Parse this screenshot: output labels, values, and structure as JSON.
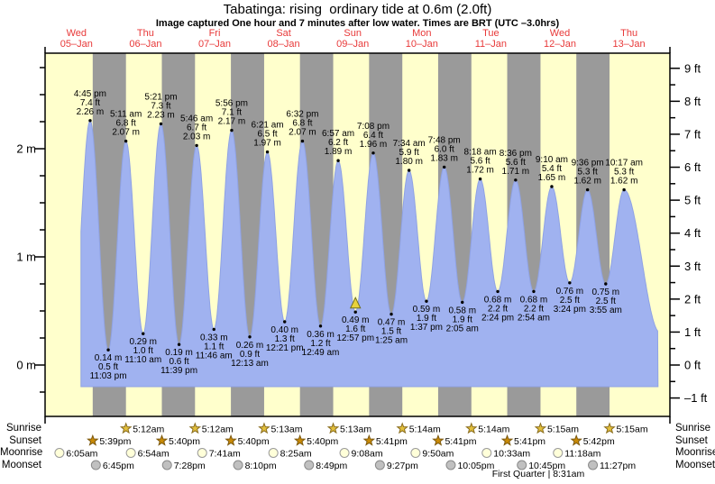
{
  "header": {
    "title": "Tabatinga: rising  ordinary tide at 0.6m (2.0ft)",
    "subtitle": "Image captured One hour and 7 minutes after low water. Times are BRT (UTC –3.0hrs)"
  },
  "chart_data": {
    "type": "area",
    "description": "Tide height curve over 9 days with day/night bands, high/low tide annotations and sun/moon event rows",
    "days": [
      {
        "weekday": "Wed",
        "date": "05–Jan"
      },
      {
        "weekday": "Thu",
        "date": "06–Jan"
      },
      {
        "weekday": "Fri",
        "date": "07–Jan"
      },
      {
        "weekday": "Sat",
        "date": "08–Jan"
      },
      {
        "weekday": "Sun",
        "date": "09–Jan"
      },
      {
        "weekday": "Mon",
        "date": "10–Jan"
      },
      {
        "weekday": "Tue",
        "date": "11–Jan"
      },
      {
        "weekday": "Wed",
        "date": "12–Jan"
      },
      {
        "weekday": "Thu",
        "date": "13–Jan"
      }
    ],
    "left_ticks": [
      {
        "value": 0,
        "label": "0 m"
      },
      {
        "value": 1,
        "label": "1 m"
      },
      {
        "value": 2,
        "label": "2 m"
      }
    ],
    "right_ticks": [
      {
        "value": -1,
        "label": "–1 ft"
      },
      {
        "value": 0,
        "label": "0 ft"
      },
      {
        "value": 1,
        "label": "1 ft"
      },
      {
        "value": 2,
        "label": "2 ft"
      },
      {
        "value": 3,
        "label": "3 ft"
      },
      {
        "value": 4,
        "label": "4 ft"
      },
      {
        "value": 5,
        "label": "5 ft"
      },
      {
        "value": 6,
        "label": "6 ft"
      },
      {
        "value": 7,
        "label": "7 ft"
      },
      {
        "value": 8,
        "label": "8 ft"
      },
      {
        "value": 9,
        "label": "9 ft"
      }
    ],
    "tide_events": [
      {
        "day": 0,
        "time": "4:45 pm",
        "ft": 7.4,
        "m": 2.26,
        "kind": "high"
      },
      {
        "day": 0,
        "time": "11:03 pm",
        "ft": 0.5,
        "m": 0.14,
        "kind": "low"
      },
      {
        "day": 1,
        "time": "5:11 am",
        "ft": 6.8,
        "m": 2.07,
        "kind": "high"
      },
      {
        "day": 1,
        "time": "11:10 am",
        "ft": 1.0,
        "m": 0.29,
        "kind": "low"
      },
      {
        "day": 1,
        "time": "5:21 pm",
        "ft": 7.3,
        "m": 2.23,
        "kind": "high"
      },
      {
        "day": 1,
        "time": "11:39 pm",
        "ft": 0.6,
        "m": 0.19,
        "kind": "low"
      },
      {
        "day": 2,
        "time": "5:46 am",
        "ft": 6.7,
        "m": 2.03,
        "kind": "high"
      },
      {
        "day": 2,
        "time": "11:46 am",
        "ft": 1.1,
        "m": 0.33,
        "kind": "low"
      },
      {
        "day": 2,
        "time": "5:56 pm",
        "ft": 7.1,
        "m": 2.17,
        "kind": "high"
      },
      {
        "day": 3,
        "time": "12:13 am",
        "ft": 0.9,
        "m": 0.26,
        "kind": "low"
      },
      {
        "day": 3,
        "time": "6:21 am",
        "ft": 6.5,
        "m": 1.97,
        "kind": "high"
      },
      {
        "day": 3,
        "time": "12:21 pm",
        "ft": 1.3,
        "m": 0.4,
        "kind": "low"
      },
      {
        "day": 3,
        "time": "6:32 pm",
        "ft": 6.8,
        "m": 2.07,
        "kind": "high"
      },
      {
        "day": 4,
        "time": "12:49 am",
        "ft": 1.2,
        "m": 0.36,
        "kind": "low"
      },
      {
        "day": 4,
        "time": "6:57 am",
        "ft": 6.2,
        "m": 1.89,
        "kind": "high"
      },
      {
        "day": 4,
        "time": "12:57 pm",
        "ft": 1.6,
        "m": 0.49,
        "kind": "low",
        "current": true
      },
      {
        "day": 4,
        "time": "7:08 pm",
        "ft": 6.4,
        "m": 1.96,
        "kind": "high"
      },
      {
        "day": 5,
        "time": "1:25 am",
        "ft": 1.5,
        "m": 0.47,
        "kind": "low"
      },
      {
        "day": 5,
        "time": "7:34 am",
        "ft": 5.9,
        "m": 1.8,
        "kind": "high"
      },
      {
        "day": 5,
        "time": "1:37 pm",
        "ft": 1.9,
        "m": 0.59,
        "kind": "low"
      },
      {
        "day": 5,
        "time": "7:48 pm",
        "ft": 6.0,
        "m": 1.83,
        "kind": "high"
      },
      {
        "day": 6,
        "time": "2:05 am",
        "ft": 1.9,
        "m": 0.58,
        "kind": "low"
      },
      {
        "day": 6,
        "time": "8:18 am",
        "ft": 5.6,
        "m": 1.72,
        "kind": "high"
      },
      {
        "day": 6,
        "time": "2:24 pm",
        "ft": 2.2,
        "m": 0.68,
        "kind": "low"
      },
      {
        "day": 6,
        "time": "8:36 pm",
        "ft": 5.6,
        "m": 1.71,
        "kind": "high"
      },
      {
        "day": 7,
        "time": "2:54 am",
        "ft": 2.2,
        "m": 0.68,
        "kind": "low"
      },
      {
        "day": 7,
        "time": "9:10 am",
        "ft": 5.4,
        "m": 1.65,
        "kind": "high"
      },
      {
        "day": 7,
        "time": "3:24 pm",
        "ft": 2.5,
        "m": 0.76,
        "kind": "low"
      },
      {
        "day": 7,
        "time": "9:36 pm",
        "ft": 5.3,
        "m": 1.62,
        "kind": "high"
      },
      {
        "day": 8,
        "time": "3:55 am",
        "ft": 2.5,
        "m": 0.75,
        "kind": "low"
      },
      {
        "day": 8,
        "time": "10:17 am",
        "ft": 5.3,
        "m": 1.62,
        "kind": "high"
      }
    ],
    "sun_moon": {
      "rows": [
        {
          "label": "Sunrise",
          "icon": "star",
          "icon_fill": "#e2bf3c",
          "icon_stroke": "#8a6d1e",
          "events": [
            {
              "day": 1,
              "time": "5:12am"
            },
            {
              "day": 2,
              "time": "5:12am"
            },
            {
              "day": 3,
              "time": "5:13am"
            },
            {
              "day": 4,
              "time": "5:13am"
            },
            {
              "day": 5,
              "time": "5:14am"
            },
            {
              "day": 6,
              "time": "5:14am"
            },
            {
              "day": 7,
              "time": "5:15am"
            },
            {
              "day": 8,
              "time": "5:15am"
            }
          ]
        },
        {
          "label": "Sunset",
          "icon": "star",
          "icon_fill": "#c98a06",
          "icon_stroke": "#7d5a10",
          "events": [
            {
              "day": 0,
              "time": "5:39pm"
            },
            {
              "day": 1,
              "time": "5:40pm"
            },
            {
              "day": 2,
              "time": "5:40pm"
            },
            {
              "day": 3,
              "time": "5:40pm"
            },
            {
              "day": 4,
              "time": "5:41pm"
            },
            {
              "day": 5,
              "time": "5:41pm"
            },
            {
              "day": 6,
              "time": "5:41pm"
            },
            {
              "day": 7,
              "time": "5:42pm"
            }
          ]
        },
        {
          "label": "Moonrise",
          "icon": "circle",
          "icon_fill": "#ffffd9",
          "icon_stroke": "#9a9a9a",
          "events": [
            {
              "day": 0,
              "time": "6:05am"
            },
            {
              "day": 1,
              "time": "6:54am"
            },
            {
              "day": 2,
              "time": "7:41am"
            },
            {
              "day": 3,
              "time": "8:25am"
            },
            {
              "day": 4,
              "time": "9:08am"
            },
            {
              "day": 5,
              "time": "9:50am"
            },
            {
              "day": 6,
              "time": "10:33am"
            },
            {
              "day": 7,
              "time": "11:18am"
            }
          ]
        },
        {
          "label": "Moonset",
          "icon": "circle",
          "icon_fill": "#c0c0c0",
          "icon_stroke": "#8a8a8a",
          "events": [
            {
              "day": 0,
              "time": "6:45pm"
            },
            {
              "day": 1,
              "time": "7:28pm"
            },
            {
              "day": 2,
              "time": "8:10pm"
            },
            {
              "day": 3,
              "time": "8:49pm"
            },
            {
              "day": 4,
              "time": "9:27pm"
            },
            {
              "day": 5,
              "time": "10:05pm"
            },
            {
              "day": 6,
              "time": "10:45pm"
            },
            {
              "day": 7,
              "time": "11:27pm"
            }
          ]
        }
      ]
    },
    "moon_phase": "First Quarter | 8:31am",
    "colors": {
      "day_band": "#ffffcc",
      "night_band": "#9a9a9a",
      "tide_fill": "#a0b2f0",
      "tide_stroke": "#8fa2e4",
      "date_label": "#e83939",
      "axis": "#000000",
      "annotation_text": "#000000",
      "current_marker_fill": "#e8d23c",
      "current_marker_stroke": "#6e6e1e"
    }
  }
}
